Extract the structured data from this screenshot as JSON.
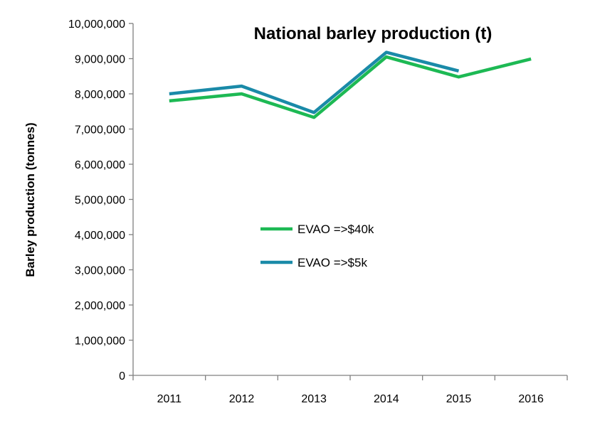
{
  "chart_data": {
    "type": "line",
    "title": "National barley production (t)",
    "xlabel": "",
    "ylabel": "Barley production (tonnes)",
    "categories": [
      "2011",
      "2012",
      "2013",
      "2014",
      "2015",
      "2016"
    ],
    "ylim": [
      0,
      10000000
    ],
    "yticks": [
      "0",
      "1,000,000",
      "2,000,000",
      "3,000,000",
      "4,000,000",
      "5,000,000",
      "6,000,000",
      "7,000,000",
      "8,000,000",
      "9,000,000",
      "10,000,000"
    ],
    "grid": false,
    "legend_position": "center",
    "series": [
      {
        "name": "EVAO =>$40k",
        "color": "#1db954",
        "values": [
          7800000,
          8000000,
          7330000,
          9050000,
          8480000,
          8990000
        ]
      },
      {
        "name": "EVAO =>$5k",
        "color": "#1a8aa8",
        "values": [
          8000000,
          8220000,
          7470000,
          9180000,
          8650000,
          null
        ]
      }
    ]
  }
}
